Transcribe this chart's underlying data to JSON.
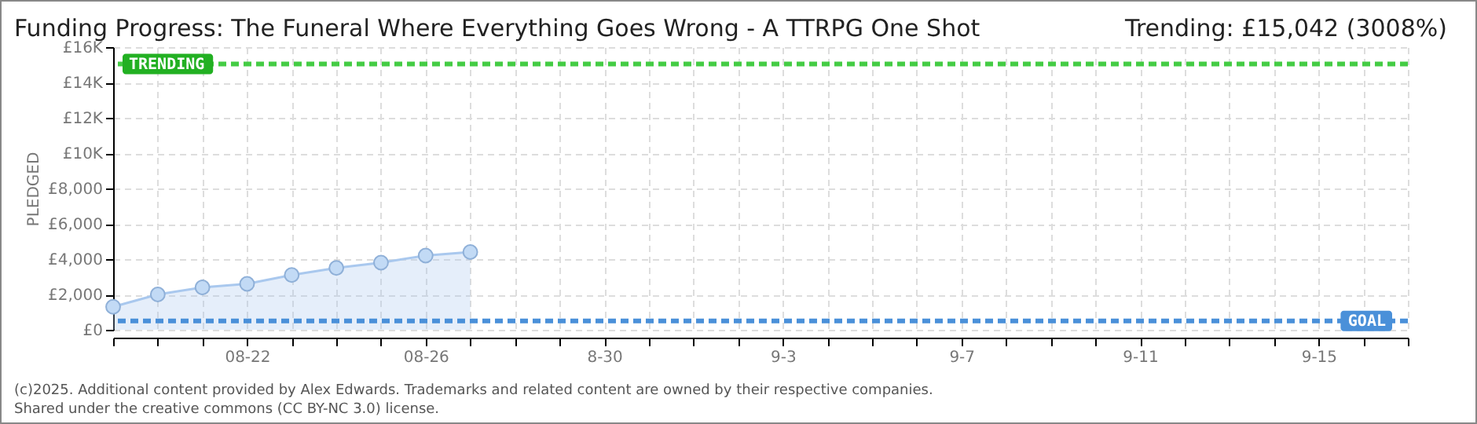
{
  "chart_data": {
    "type": "area",
    "title": "Funding Progress: The Funeral Where Everything Goes Wrong - A TTRPG One Shot",
    "subtitle": "Trending:  £15,042 (3008%)",
    "ylabel": "PLEDGED",
    "x": [
      "2025-08-19",
      "2025-08-20",
      "2025-08-21",
      "2025-08-22",
      "2025-08-23",
      "2025-08-24",
      "2025-08-25",
      "2025-08-26",
      "2025-08-27"
    ],
    "series": [
      {
        "color": "#a9c8ee",
        "values": [
          1300,
          2000,
          2400,
          2600,
          3100,
          3500,
          3800,
          4200,
          4400
        ]
      }
    ],
    "marker": "circle",
    "grid": true,
    "xlim": [
      "2025-08-19",
      "2025-09-17"
    ],
    "xticks": [
      {
        "value": "2025-08-19",
        "label": null
      },
      {
        "value": "2025-08-20",
        "label": null
      },
      {
        "value": "2025-08-21",
        "label": null
      },
      {
        "value": "2025-08-22",
        "label": "08-22"
      },
      {
        "value": "2025-08-23",
        "label": null
      },
      {
        "value": "2025-08-24",
        "label": null
      },
      {
        "value": "2025-08-25",
        "label": null
      },
      {
        "value": "2025-08-26",
        "label": "08-26"
      },
      {
        "value": "2025-08-27",
        "label": null
      },
      {
        "value": "2025-08-28",
        "label": null
      },
      {
        "value": "2025-08-29",
        "label": null
      },
      {
        "value": "2025-08-30",
        "label": "8-30"
      },
      {
        "value": "2025-08-31",
        "label": null
      },
      {
        "value": "2025-09-01",
        "label": null
      },
      {
        "value": "2025-09-02",
        "label": null
      },
      {
        "value": "2025-09-03",
        "label": "9-3"
      },
      {
        "value": "2025-09-04",
        "label": null
      },
      {
        "value": "2025-09-05",
        "label": null
      },
      {
        "value": "2025-09-06",
        "label": null
      },
      {
        "value": "2025-09-07",
        "label": "9-7"
      },
      {
        "value": "2025-09-08",
        "label": null
      },
      {
        "value": "2025-09-09",
        "label": null
      },
      {
        "value": "2025-09-10",
        "label": null
      },
      {
        "value": "2025-09-11",
        "label": "9-11"
      },
      {
        "value": "2025-09-12",
        "label": null
      },
      {
        "value": "2025-09-13",
        "label": null
      },
      {
        "value": "2025-09-14",
        "label": null
      },
      {
        "value": "2025-09-15",
        "label": "9-15"
      },
      {
        "value": "2025-09-16",
        "label": null
      },
      {
        "value": "2025-09-17",
        "label": null
      }
    ],
    "ylim": [
      0,
      16000
    ],
    "yticks": [
      {
        "value": 0,
        "label": "£0"
      },
      {
        "value": 2000,
        "label": "£2,000"
      },
      {
        "value": 4000,
        "label": "£4,000"
      },
      {
        "value": 6000,
        "label": "£6,000"
      },
      {
        "value": 8000,
        "label": "£8,000"
      },
      {
        "value": 10000,
        "label": "£10K"
      },
      {
        "value": 12000,
        "label": "£12K"
      },
      {
        "value": 14000,
        "label": "£14K"
      },
      {
        "value": 16000,
        "label": "£16K"
      }
    ],
    "ref_lines": [
      {
        "axis": "y",
        "value": 15042,
        "label": "TRENDING",
        "color": "#44cc44",
        "line_style": "dashed"
      },
      {
        "axis": "y",
        "value": 500,
        "label": "GOAL",
        "color": "#4a90d9",
        "line_style": "dashed"
      }
    ],
    "annotations": [
      "(c)2025. Additional content provided by Alex Edwards. Trademarks and related content are owned by their respective companies.",
      "Shared under the creative commons (CC BY-NC 3.0) license."
    ]
  }
}
